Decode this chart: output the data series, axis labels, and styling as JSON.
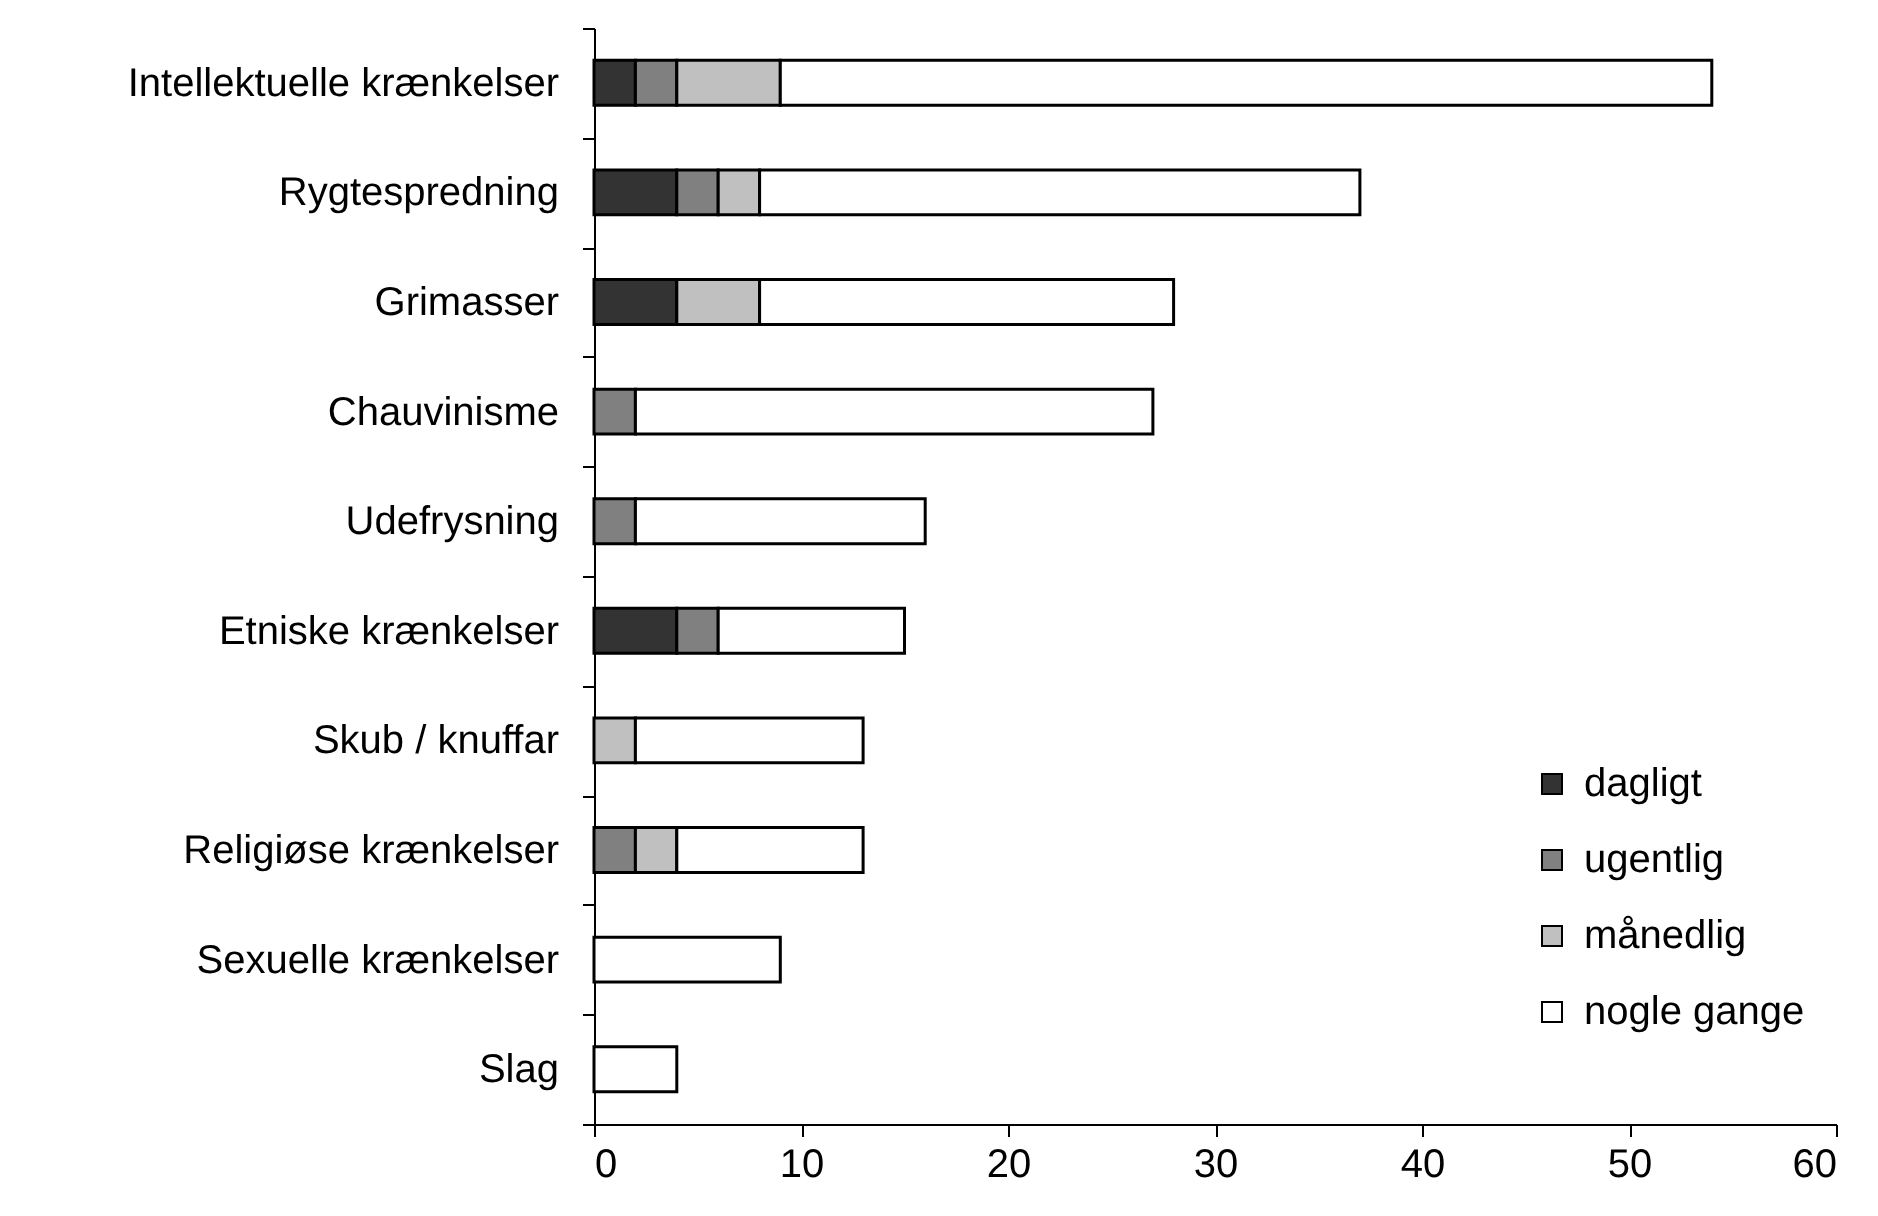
{
  "chart_data": {
    "type": "bar",
    "orientation": "horizontal",
    "stacked": true,
    "categories": [
      "Intellektuelle krænkelser",
      "Rygtespredning",
      "Grimasser",
      "Chauvinisme",
      "Udefrysning",
      "Etniske krænkelser",
      "Skub / knuffar",
      "Religiøse krænkelser",
      "Sexuelle krænkelser",
      "Slag"
    ],
    "series": [
      {
        "name": "dagligt",
        "color": "#333333",
        "values": [
          2,
          4,
          4,
          null,
          null,
          4,
          null,
          null,
          null,
          null
        ]
      },
      {
        "name": "ugentlig",
        "color": "#808080",
        "values": [
          2,
          2,
          null,
          2,
          2,
          2,
          null,
          2,
          null,
          null
        ]
      },
      {
        "name": "månedlig",
        "color": "#c0c0c0",
        "values": [
          5,
          2,
          4,
          null,
          null,
          null,
          2,
          2,
          null,
          null
        ]
      },
      {
        "name": "nogle gange",
        "color": "#ffffff",
        "values": [
          45,
          29,
          20,
          25,
          14,
          9,
          11,
          9,
          9,
          4
        ]
      }
    ],
    "xlim": [
      0,
      60
    ],
    "xticks": [
      0,
      10,
      20,
      30,
      40,
      50,
      60
    ],
    "grid": false,
    "legend": "bottom right"
  }
}
